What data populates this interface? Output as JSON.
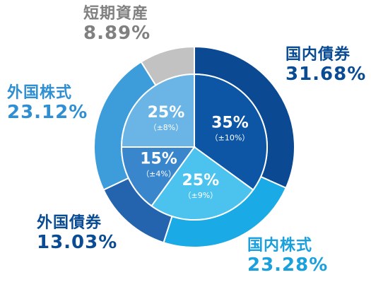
{
  "chart_data": {
    "type": "pie",
    "subtype": "nested-donut",
    "outer": {
      "series": [
        {
          "name": "国内債券",
          "value_text": "31.68%",
          "value": 31.68,
          "color": "#0b4a93"
        },
        {
          "name": "国内株式",
          "value_text": "23.28%",
          "value": 23.28,
          "color": "#1aaae6"
        },
        {
          "name": "外国債券",
          "value_text": "13.03%",
          "value": 13.03,
          "color": "#2463ad"
        },
        {
          "name": "外国株式",
          "value_text": "23.12%",
          "value": 23.12,
          "color": "#3d9ddb"
        },
        {
          "name": "短期資産",
          "value_text": "8.89%",
          "value": 8.89,
          "color": "#c2c2c2"
        }
      ]
    },
    "inner": {
      "series": [
        {
          "pct_text": "35%",
          "range_text": "（±10%）",
          "value": 35,
          "color": "#0d56a6"
        },
        {
          "pct_text": "25%",
          "range_text": "（±9%）",
          "value": 25,
          "color": "#4cc3ef"
        },
        {
          "pct_text": "15%",
          "range_text": "（±4%）",
          "value": 15,
          "color": "#3a86cc"
        },
        {
          "pct_text": "25%",
          "range_text": "（±8%）",
          "value": 25,
          "color": "#6ab4e6"
        }
      ]
    }
  },
  "label_colors": {
    "dark_blue": "#0a4c94",
    "light_blue": "#1aa0dc",
    "mid_blue": "#2f8fd3",
    "gray": "#808080"
  }
}
